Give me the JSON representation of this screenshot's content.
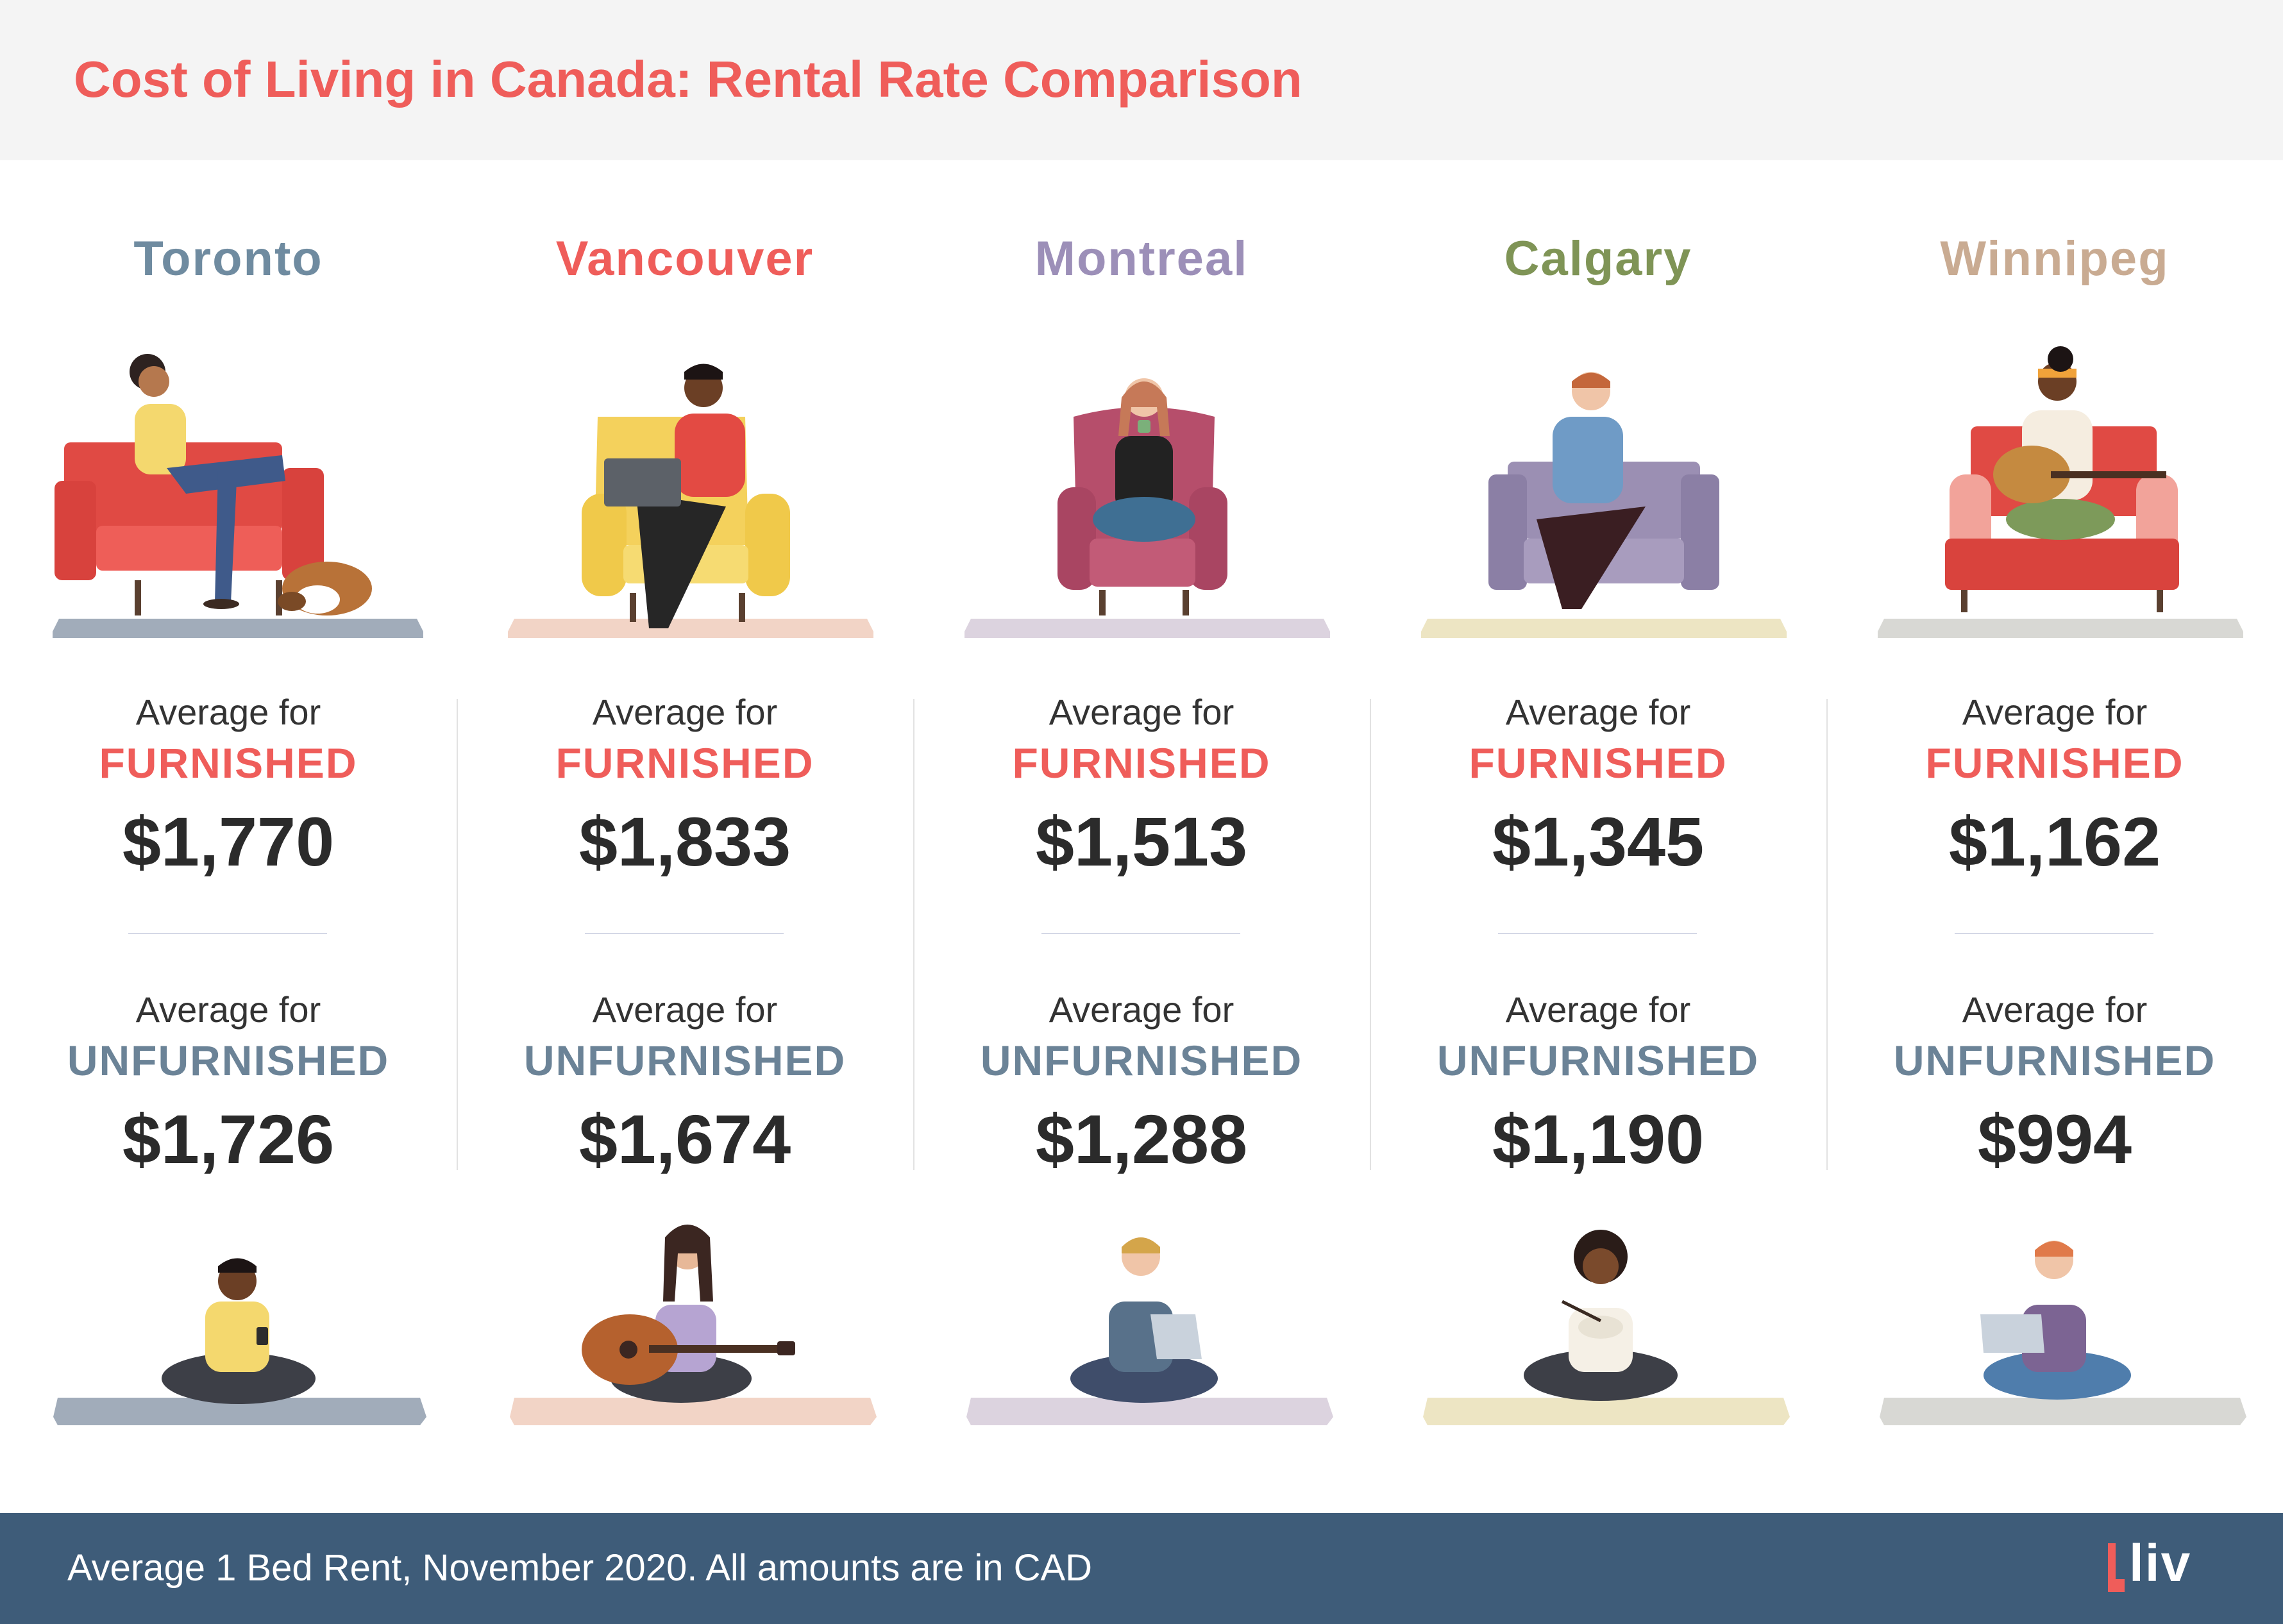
{
  "header": {
    "title": "Cost of Living in Canada: Rental Rate Comparison"
  },
  "labels": {
    "average_for": "Average for",
    "furnished": "FURNISHED",
    "unfurnished": "UNFURNISHED"
  },
  "cities": [
    {
      "name": "Toronto",
      "color": "#6f8ba0",
      "furnished": "$1,770",
      "unfurnished": "$1,726"
    },
    {
      "name": "Vancouver",
      "color": "#ef5d5a",
      "furnished": "$1,833",
      "unfurnished": "$1,674"
    },
    {
      "name": "Montreal",
      "color": "#9c8fb8",
      "furnished": "$1,513",
      "unfurnished": "$1,288"
    },
    {
      "name": "Calgary",
      "color": "#7f9456",
      "furnished": "$1,345",
      "unfurnished": "$1,190"
    },
    {
      "name": "Winnipeg",
      "color": "#c9ab92",
      "furnished": "$1,162",
      "unfurnished": "$994"
    }
  ],
  "footer": {
    "note": "Average 1 Bed Rent, November 2020. All amounts are in CAD",
    "logo_text": "liv"
  }
}
